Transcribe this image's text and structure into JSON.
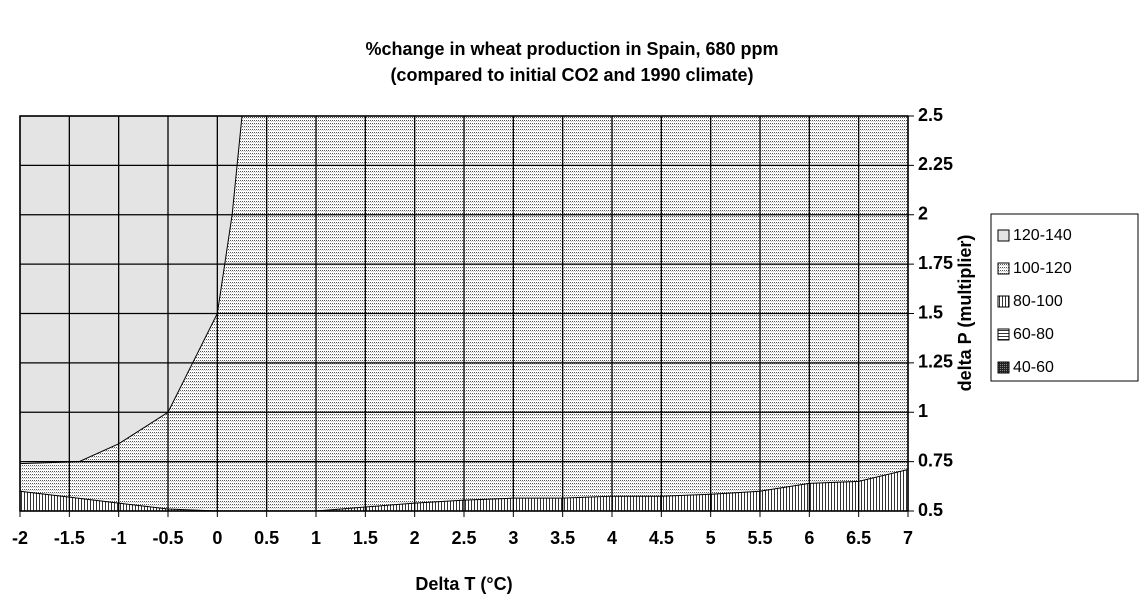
{
  "chart_data": {
    "type": "contour",
    "title": "%change in wheat production in Spain, 680 ppm",
    "subtitle": "(compared to initial CO2 and 1990 climate)",
    "x_label": "Delta T (°C)",
    "y_label": "delta P (multiplier)",
    "xlim": [
      -2,
      7
    ],
    "ylim": [
      0.5,
      2.5
    ],
    "xticks": [
      -2,
      -1.5,
      -1,
      -0.5,
      0,
      0.5,
      1,
      1.5,
      2,
      2.5,
      3,
      3.5,
      4,
      4.5,
      5,
      5.5,
      6,
      6.5,
      7
    ],
    "yticks": [
      0.5,
      0.75,
      1,
      1.25,
      1.5,
      1.75,
      2,
      2.25,
      2.5
    ],
    "grid": true,
    "legend": "right",
    "series": [
      {
        "name": "120-140",
        "pattern": "light",
        "contour": 0,
        "side": "above"
      },
      {
        "name": "100-120",
        "pattern": "dots"
      },
      {
        "name": "80-100",
        "pattern": "vertical",
        "contour": 1,
        "side": "below"
      },
      {
        "name": "60-80",
        "pattern": "horizontal"
      },
      {
        "name": "40-60",
        "pattern": "dense"
      }
    ],
    "contours": [
      {
        "x": [
          -2,
          -1.4,
          -1,
          -0.5,
          0,
          0.15,
          0.25
        ],
        "y": [
          0.74,
          0.75,
          0.84,
          1.0,
          1.5,
          2.0,
          2.5
        ]
      },
      {
        "x": [
          -2,
          -1.5,
          -1,
          -0.5,
          0,
          1,
          1.5,
          2,
          2.5,
          3,
          3.5,
          4,
          4.5,
          5,
          5.5,
          6,
          6.5,
          7
        ],
        "y": [
          0.6,
          0.57,
          0.54,
          0.51,
          0.5,
          0.5,
          0.52,
          0.54,
          0.555,
          0.565,
          0.565,
          0.575,
          0.575,
          0.585,
          0.6,
          0.64,
          0.65,
          0.71
        ]
      }
    ]
  }
}
